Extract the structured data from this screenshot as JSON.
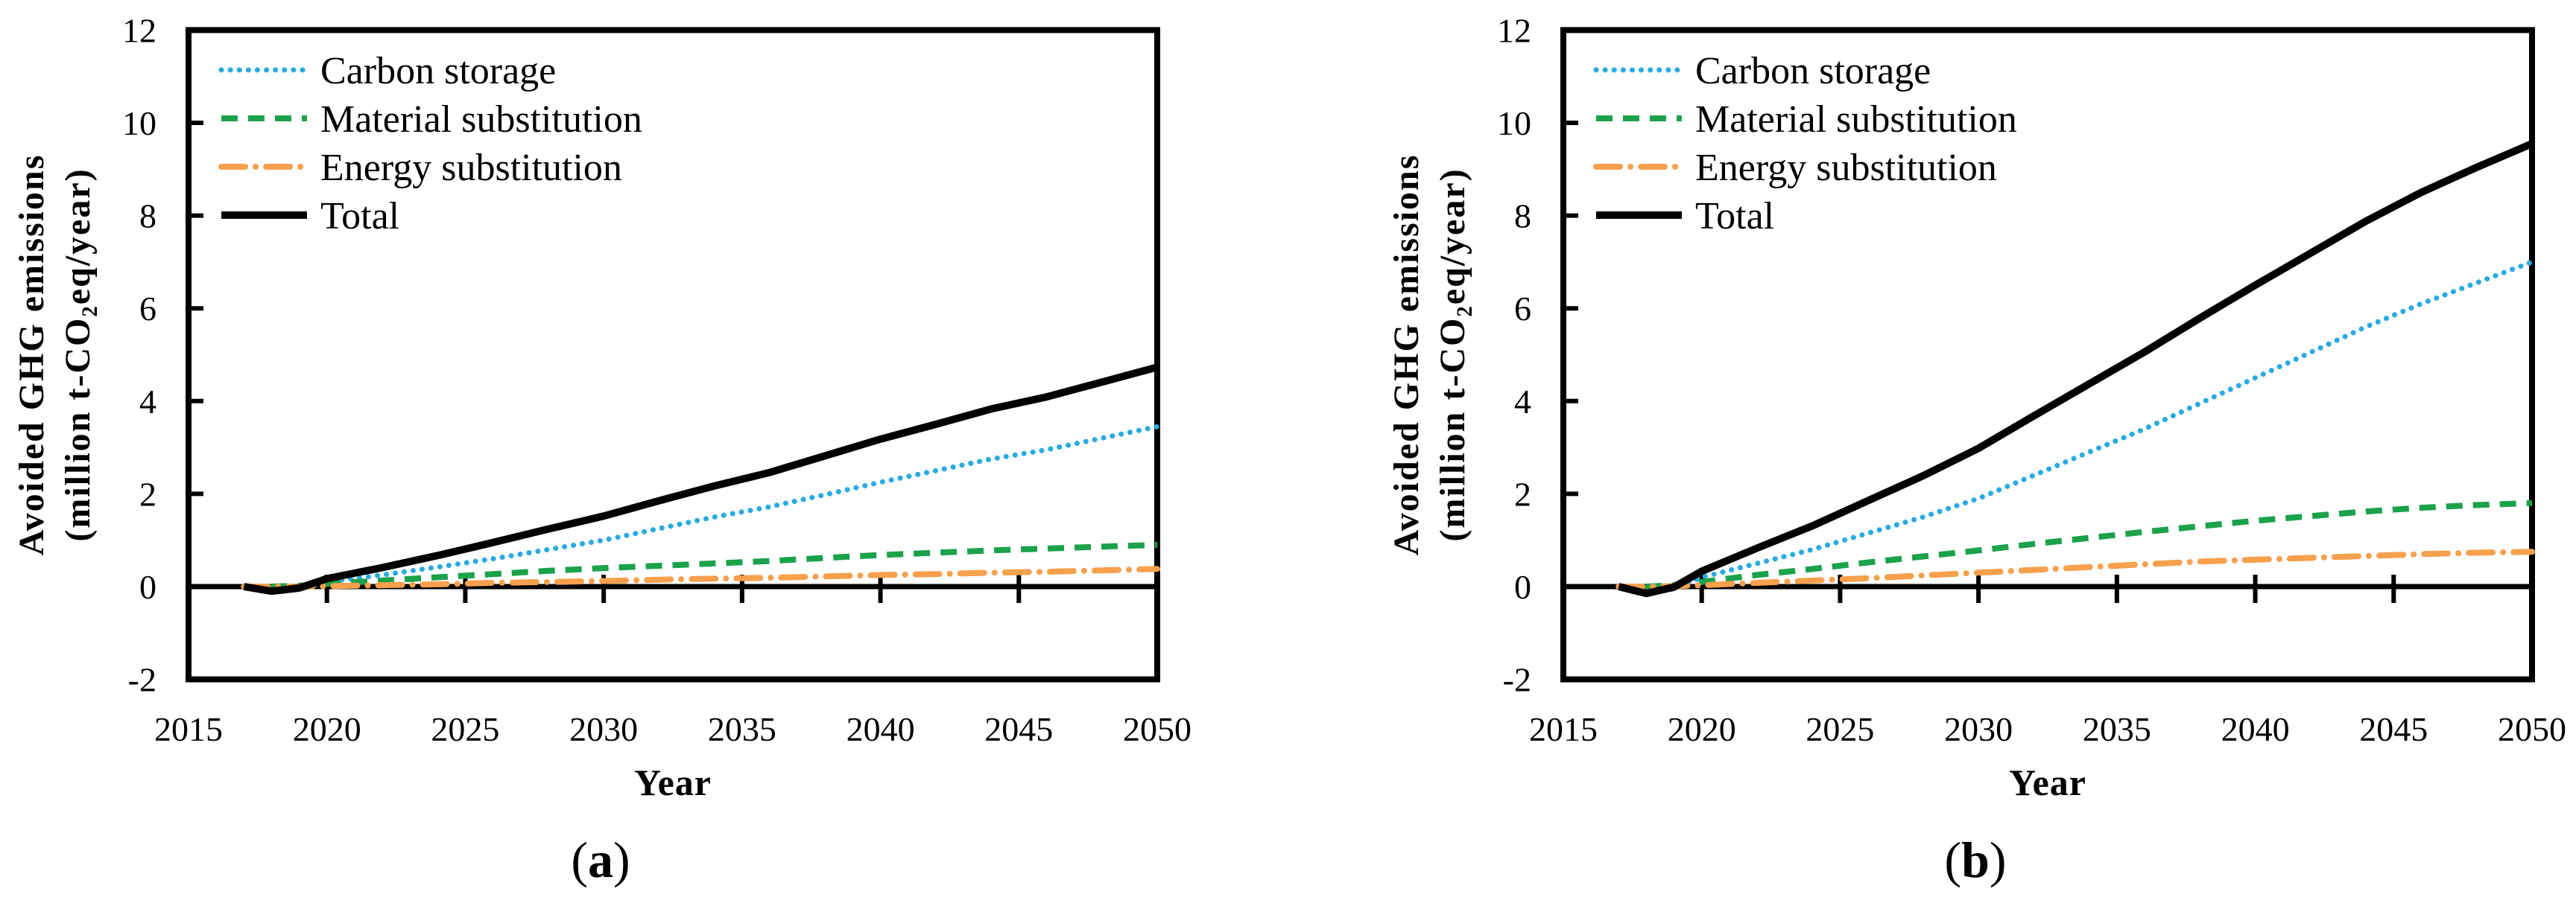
{
  "figure": {
    "background": "#ffffff"
  },
  "chart_data": [
    {
      "type": "line",
      "caption": "a",
      "xlabel": "Year",
      "ylabel_lines": [
        "Avoided GHG emissions",
        "(million t-CO₂eq/year)"
      ],
      "xlim": [
        2015,
        2050
      ],
      "ylim": [
        -2,
        12
      ],
      "xticks": [
        2015,
        2020,
        2025,
        2030,
        2035,
        2040,
        2045,
        2050
      ],
      "yticks": [
        12,
        10,
        8,
        6,
        4,
        2,
        0,
        -2
      ],
      "grid": false,
      "legend_position": "top-left",
      "x": [
        2017,
        2018,
        2019,
        2020,
        2022,
        2024,
        2026,
        2028,
        2030,
        2032,
        2034,
        2036,
        2038,
        2040,
        2042,
        2044,
        2046,
        2048,
        2050
      ],
      "series": [
        {
          "name": "Carbon storage",
          "color": "#29ABE2",
          "style": "dotted",
          "values": [
            0,
            -0.1,
            -0.05,
            0.1,
            0.25,
            0.42,
            0.6,
            0.8,
            1.0,
            1.25,
            1.5,
            1.72,
            1.98,
            2.25,
            2.5,
            2.75,
            2.95,
            3.2,
            3.45
          ]
        },
        {
          "name": "Material substitution",
          "color": "#1BA24B",
          "style": "dashed",
          "values": [
            0,
            0,
            0.02,
            0.06,
            0.13,
            0.2,
            0.27,
            0.34,
            0.4,
            0.45,
            0.5,
            0.55,
            0.62,
            0.68,
            0.73,
            0.78,
            0.82,
            0.86,
            0.9
          ]
        },
        {
          "name": "Energy substitution",
          "color": "#F7A04D",
          "style": "dashdot",
          "values": [
            0,
            0,
            0,
            0.01,
            0.03,
            0.05,
            0.08,
            0.1,
            0.12,
            0.15,
            0.17,
            0.19,
            0.22,
            0.25,
            0.27,
            0.3,
            0.32,
            0.35,
            0.38
          ]
        },
        {
          "name": "Total",
          "color": "#000000",
          "style": "solid",
          "values": [
            0,
            -0.1,
            -0.03,
            0.17,
            0.41,
            0.67,
            0.95,
            1.24,
            1.52,
            1.85,
            2.17,
            2.46,
            2.82,
            3.18,
            3.5,
            3.83,
            4.09,
            4.41,
            4.73
          ]
        }
      ]
    },
    {
      "type": "line",
      "caption": "b",
      "xlabel": "Year",
      "ylabel_lines": [
        "Avoided GHG emissions",
        "(million t-CO₂eq/year)"
      ],
      "xlim": [
        2015,
        2050
      ],
      "ylim": [
        -2,
        12
      ],
      "xticks": [
        2015,
        2020,
        2025,
        2030,
        2035,
        2040,
        2045,
        2050
      ],
      "yticks": [
        12,
        10,
        8,
        6,
        4,
        2,
        0,
        -2
      ],
      "grid": false,
      "legend_position": "top-left",
      "x": [
        2017,
        2018,
        2019,
        2020,
        2022,
        2024,
        2026,
        2028,
        2030,
        2032,
        2034,
        2036,
        2038,
        2040,
        2042,
        2044,
        2046,
        2048,
        2050
      ],
      "series": [
        {
          "name": "Carbon storage",
          "color": "#29ABE2",
          "style": "dotted",
          "values": [
            0,
            -0.15,
            -0.05,
            0.2,
            0.5,
            0.8,
            1.15,
            1.5,
            1.9,
            2.4,
            2.9,
            3.4,
            3.95,
            4.5,
            5.05,
            5.6,
            6.1,
            6.55,
            7.0
          ]
        },
        {
          "name": "Material substitution",
          "color": "#1BA24B",
          "style": "dashed",
          "values": [
            0,
            0,
            0.03,
            0.1,
            0.25,
            0.38,
            0.52,
            0.65,
            0.78,
            0.92,
            1.05,
            1.18,
            1.3,
            1.42,
            1.52,
            1.62,
            1.7,
            1.76,
            1.8
          ]
        },
        {
          "name": "Energy substitution",
          "color": "#F7A04D",
          "style": "dashdot",
          "values": [
            0,
            0,
            0.01,
            0.03,
            0.08,
            0.13,
            0.18,
            0.24,
            0.3,
            0.36,
            0.42,
            0.48,
            0.54,
            0.58,
            0.62,
            0.66,
            0.7,
            0.73,
            0.75
          ]
        },
        {
          "name": "Total",
          "color": "#000000",
          "style": "solid",
          "values": [
            0,
            -0.15,
            -0.01,
            0.33,
            0.83,
            1.31,
            1.85,
            2.39,
            2.98,
            3.68,
            4.37,
            5.06,
            5.79,
            6.5,
            7.19,
            7.88,
            8.5,
            9.04,
            9.55
          ]
        }
      ]
    }
  ]
}
